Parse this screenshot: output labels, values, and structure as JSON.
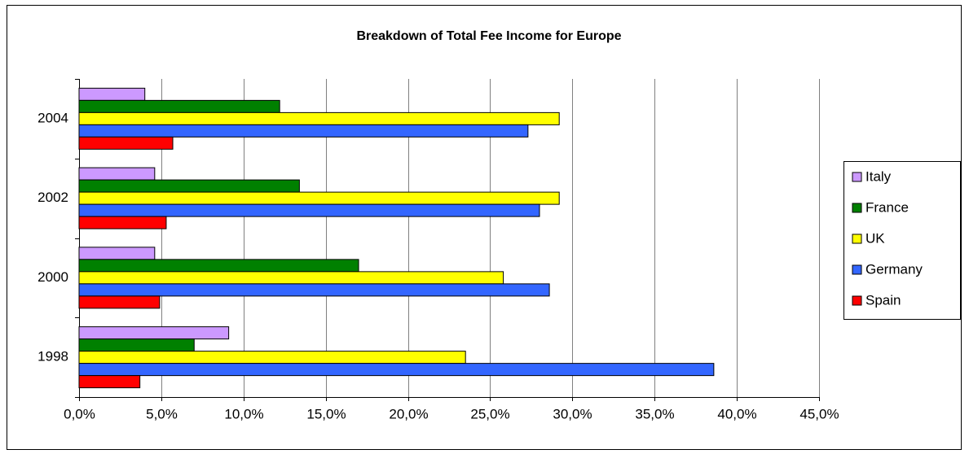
{
  "chart_data": {
    "type": "barh",
    "title": "Breakdown of Total Fee Income for Europe",
    "categories": [
      "1998",
      "2000",
      "2002",
      "2004"
    ],
    "series": [
      {
        "name": "Italy",
        "color": "#cc99ff",
        "values": [
          9.1,
          4.6,
          4.6,
          4.0
        ]
      },
      {
        "name": "France",
        "color": "#008000",
        "values": [
          7.0,
          17.0,
          13.4,
          12.2
        ]
      },
      {
        "name": "UK",
        "color": "#ffff00",
        "values": [
          23.5,
          25.8,
          29.2,
          29.2
        ]
      },
      {
        "name": "Germany",
        "color": "#3366ff",
        "values": [
          38.6,
          28.6,
          28.0,
          27.3
        ]
      },
      {
        "name": "Spain",
        "color": "#ff0000",
        "values": [
          3.7,
          4.9,
          5.3,
          5.7
        ]
      }
    ],
    "xlim": [
      0,
      45
    ],
    "xticks": [
      {
        "value": 0,
        "label": "0,0%"
      },
      {
        "value": 5,
        "label": "5,0%"
      },
      {
        "value": 10,
        "label": "10,0%"
      },
      {
        "value": 15,
        "label": "15,0%"
      },
      {
        "value": 20,
        "label": "20,0%"
      },
      {
        "value": 25,
        "label": "25,0%"
      },
      {
        "value": 30,
        "label": "30,0%"
      },
      {
        "value": 35,
        "label": "35,0%"
      },
      {
        "value": 40,
        "label": "40,0%"
      },
      {
        "value": 45,
        "label": "45,0%"
      }
    ],
    "grid": true,
    "legend": "right"
  }
}
